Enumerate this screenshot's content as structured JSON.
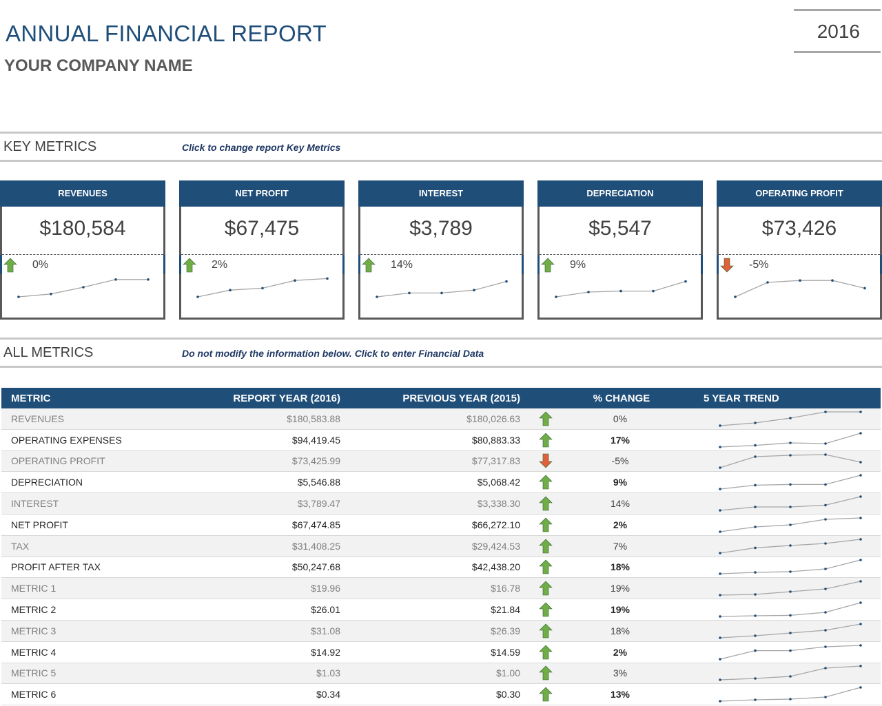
{
  "header": {
    "title": "ANNUAL FINANCIAL REPORT",
    "company": "YOUR COMPANY NAME",
    "year": "2016"
  },
  "key_metrics": {
    "title": "KEY METRICS",
    "note": "Click to change report Key Metrics",
    "cards": [
      {
        "label": "REVENUES",
        "value": "$180,584",
        "change": "0%",
        "direction": "up",
        "trend": [
          0.0,
          0.15,
          0.5,
          0.9,
          0.9
        ]
      },
      {
        "label": "NET PROFIT",
        "value": "$67,475",
        "change": "2%",
        "direction": "up",
        "trend": [
          0.0,
          0.35,
          0.45,
          0.85,
          0.95
        ]
      },
      {
        "label": "INTEREST",
        "value": "$3,789",
        "change": "14%",
        "direction": "up",
        "trend": [
          0.0,
          0.2,
          0.2,
          0.35,
          0.8
        ]
      },
      {
        "label": "DEPRECIATION",
        "value": "$5,547",
        "change": "9%",
        "direction": "up",
        "trend": [
          0.0,
          0.25,
          0.3,
          0.3,
          0.8
        ]
      },
      {
        "label": "OPERATING PROFIT",
        "value": "$73,426",
        "change": "-5%",
        "direction": "down",
        "trend": [
          0.0,
          0.75,
          0.85,
          0.85,
          0.45
        ]
      }
    ]
  },
  "all_metrics": {
    "title": "ALL METRICS",
    "note": "Do not modify the information below. Click to enter Financial Data",
    "columns": [
      "METRIC",
      "REPORT YEAR (2016)",
      "PREVIOUS YEAR (2015)",
      "% CHANGE",
      "5 YEAR TREND"
    ],
    "rows": [
      {
        "metric": "REVENUES",
        "report": "$180,583.88",
        "previous": "$180,026.63",
        "direction": "up",
        "change": "0%",
        "trend": [
          0.0,
          0.2,
          0.55,
          1.0,
          1.0
        ]
      },
      {
        "metric": "OPERATING EXPENSES",
        "report": "$94,419.45",
        "previous": "$80,883.33",
        "direction": "up",
        "change": "17%",
        "trend": [
          0.0,
          0.12,
          0.3,
          0.25,
          1.0
        ]
      },
      {
        "metric": "OPERATING PROFIT",
        "report": "$73,425.99",
        "previous": "$77,317.83",
        "direction": "down",
        "change": "-5%",
        "trend": [
          0.0,
          0.8,
          0.9,
          0.95,
          0.4
        ]
      },
      {
        "metric": "DEPRECIATION",
        "report": "$5,546.88",
        "previous": "$5,068.42",
        "direction": "up",
        "change": "9%",
        "trend": [
          0.0,
          0.28,
          0.33,
          0.33,
          1.0
        ]
      },
      {
        "metric": "INTEREST",
        "report": "$3,789.47",
        "previous": "$3,338.30",
        "direction": "up",
        "change": "14%",
        "trend": [
          0.0,
          0.25,
          0.25,
          0.38,
          1.0
        ]
      },
      {
        "metric": "NET PROFIT",
        "report": "$67,474.85",
        "previous": "$66,272.10",
        "direction": "up",
        "change": "2%",
        "trend": [
          0.0,
          0.35,
          0.5,
          0.9,
          1.0
        ]
      },
      {
        "metric": "TAX",
        "report": "$31,408.25",
        "previous": "$29,424.53",
        "direction": "up",
        "change": "7%",
        "trend": [
          0.0,
          0.38,
          0.55,
          0.7,
          1.0
        ]
      },
      {
        "metric": "PROFIT AFTER TAX",
        "report": "$50,247.68",
        "previous": "$42,438.20",
        "direction": "up",
        "change": "18%",
        "trend": [
          0.0,
          0.1,
          0.15,
          0.35,
          1.0
        ]
      },
      {
        "metric": "METRIC 1",
        "report": "$19.96",
        "previous": "$16.78",
        "direction": "up",
        "change": "19%",
        "trend": [
          0.0,
          0.05,
          0.25,
          0.45,
          1.0
        ]
      },
      {
        "metric": "METRIC 2",
        "report": "$26.01",
        "previous": "$21.84",
        "direction": "up",
        "change": "19%",
        "trend": [
          0.0,
          0.05,
          0.08,
          0.3,
          1.0
        ]
      },
      {
        "metric": "METRIC 3",
        "report": "$31.08",
        "previous": "$26.39",
        "direction": "up",
        "change": "18%",
        "trend": [
          0.0,
          0.15,
          0.35,
          0.55,
          1.0
        ]
      },
      {
        "metric": "METRIC 4",
        "report": "$14.92",
        "previous": "$14.59",
        "direction": "up",
        "change": "2%",
        "trend": [
          0.0,
          0.62,
          0.62,
          0.9,
          1.0
        ]
      },
      {
        "metric": "METRIC 5",
        "report": "$1.03",
        "previous": "$1.00",
        "direction": "up",
        "change": "3%",
        "trend": [
          0.0,
          0.1,
          0.25,
          0.85,
          1.0
        ]
      },
      {
        "metric": "METRIC 6",
        "report": "$0.34",
        "previous": "$0.30",
        "direction": "up",
        "change": "13%",
        "trend": [
          0.0,
          0.1,
          0.15,
          0.3,
          1.0
        ]
      }
    ]
  },
  "colors": {
    "navy": "#1f4e79",
    "up_arrow": "#70ad47",
    "down_arrow": "#e0603a",
    "spark_line": "#a6a6a6",
    "spark_dot": "#1f4e79"
  }
}
